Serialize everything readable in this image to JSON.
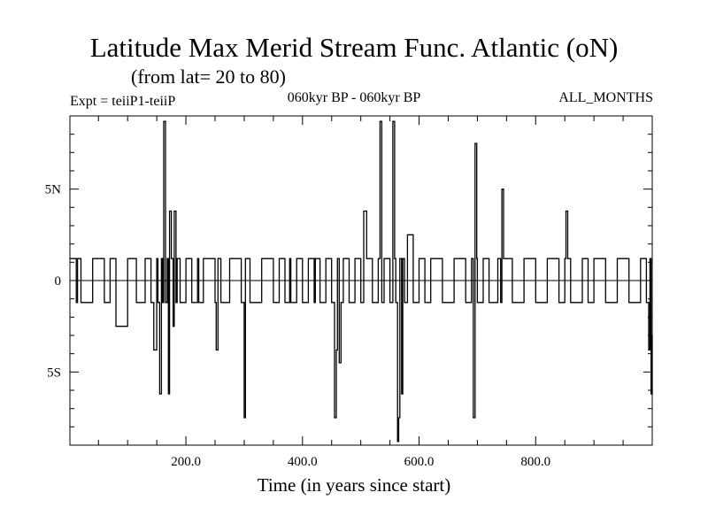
{
  "chart_data": {
    "type": "line",
    "title": "Latitude Max Merid Stream Func. Atlantic (oN)",
    "subtitle": "(from lat= 20 to 80)",
    "annotations": {
      "left": "Expt = teiiP1-teiiP",
      "center": "060kyr BP - 060kyr BP",
      "right": "ALL_MONTHS"
    },
    "xlabel": "Time (in years since start)",
    "ylabel": "",
    "xlim": [
      1,
      1000
    ],
    "ylim": [
      -9,
      9
    ],
    "x_ticks": [
      {
        "value": 200,
        "label": "200.0"
      },
      {
        "value": 400,
        "label": "400.0"
      },
      {
        "value": 600,
        "label": "600.0"
      },
      {
        "value": 800,
        "label": "800.0"
      }
    ],
    "y_ticks": [
      {
        "value": 5,
        "label": "5N"
      },
      {
        "value": 0,
        "label": "0"
      },
      {
        "value": -5,
        "label": "5S"
      }
    ],
    "zero_line": true,
    "grid": false,
    "series": [
      {
        "color": "#000000",
        "x": [
          1,
          12,
          14,
          20,
          40,
          60,
          70,
          80,
          100,
          115,
          130,
          140,
          145,
          150,
          152,
          155,
          158,
          160,
          162,
          165,
          168,
          170,
          172,
          175,
          178,
          180,
          183,
          185,
          190,
          200,
          210,
          220,
          222,
          230,
          250,
          252,
          255,
          260,
          275,
          295,
          300,
          302,
          310,
          330,
          350,
          360,
          370,
          378,
          380,
          390,
          400,
          410,
          420,
          422,
          430,
          440,
          450,
          455,
          458,
          460,
          463,
          466,
          470,
          480,
          490,
          500,
          505,
          510,
          520,
          530,
          533,
          536,
          540,
          550,
          555,
          558,
          560,
          563,
          565,
          567,
          570,
          572,
          575,
          580,
          590,
          600,
          610,
          620,
          640,
          660,
          680,
          690,
          693,
          696,
          699,
          700,
          710,
          720,
          735,
          740,
          742,
          745,
          760,
          780,
          800,
          820,
          840,
          850,
          852,
          855,
          860,
          880,
          890,
          900,
          920,
          940,
          960,
          980,
          990,
          994,
          996,
          998,
          1000
        ],
        "y": [
          1.2,
          -1.2,
          1.2,
          -1.2,
          1.2,
          -1.2,
          1.2,
          -2.5,
          1.2,
          -1.2,
          1.2,
          -1.2,
          -3.8,
          1.2,
          -1.2,
          -6.2,
          1.2,
          -1.2,
          8.7,
          -1.2,
          1.2,
          -6.2,
          3.8,
          1.2,
          -2.5,
          3.8,
          -1.2,
          1.2,
          -1.2,
          1.2,
          -1.2,
          1.2,
          -1.2,
          1.2,
          -1.2,
          -3.8,
          1.2,
          -1.2,
          1.2,
          -1.2,
          -7.5,
          1.2,
          -1.2,
          1.2,
          -1.2,
          1.2,
          -1.2,
          1.2,
          -1.2,
          1.2,
          -1.2,
          1.2,
          -1.2,
          1.2,
          -1.2,
          1.2,
          -1.2,
          -7.5,
          -3.8,
          1.2,
          -4.5,
          -1.2,
          1.2,
          -1.2,
          1.2,
          -1.2,
          3.8,
          1.2,
          -1.2,
          1.2,
          8.7,
          -1.2,
          1.2,
          -1.2,
          8.7,
          1.2,
          -1.2,
          -8.8,
          -7.5,
          1.2,
          -6.2,
          1.2,
          -1.2,
          2.5,
          -1.2,
          1.2,
          -1.2,
          1.2,
          -1.2,
          1.2,
          -1.2,
          1.2,
          -7.5,
          7.5,
          1.2,
          -1.2,
          1.2,
          -1.2,
          1.2,
          -1.2,
          5.0,
          1.2,
          -1.2,
          1.2,
          -1.2,
          1.2,
          -1.2,
          1.2,
          3.8,
          1.2,
          -1.2,
          1.2,
          -1.2,
          1.2,
          -1.2,
          1.2,
          -1.2,
          1.2,
          -1.2,
          -3.8,
          1.2,
          -6.2,
          -3.0
        ]
      }
    ]
  }
}
